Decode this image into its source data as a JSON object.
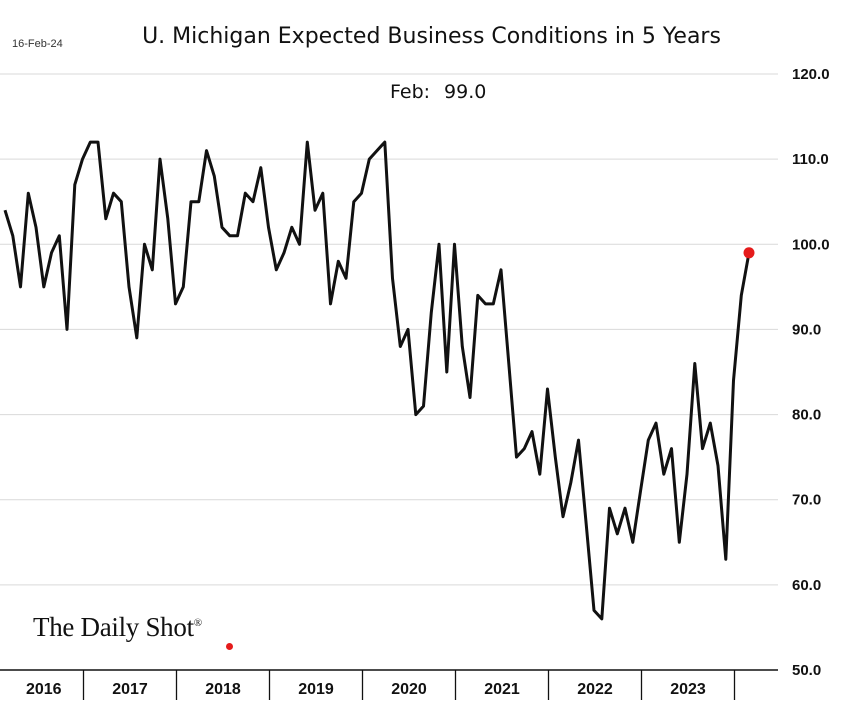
{
  "header": {
    "date": "16-Feb-24",
    "title": "U. Michigan Expected Business Conditions in 5 Years"
  },
  "annotation": {
    "label": "Feb:",
    "value": "99.0"
  },
  "logo": {
    "text": "The Daily Shot",
    "mark": "®"
  },
  "colors": {
    "line": "#111111",
    "last_point": "#e51b1b",
    "grid": "#d9d9d9"
  },
  "chart_data": {
    "type": "line",
    "title": "U. Michigan Expected Business Conditions in 5 Years",
    "xlabel": "",
    "ylabel": "",
    "ylim": [
      50,
      120
    ],
    "y_ticks": [
      "50.0",
      "60.0",
      "70.0",
      "80.0",
      "90.0",
      "100.0",
      "110.0",
      "120.0"
    ],
    "x_ticks": [
      "2016",
      "2017",
      "2018",
      "2019",
      "2020",
      "2021",
      "2022",
      "2023"
    ],
    "x_start": "2016-01",
    "grid": "horizontal",
    "y_axis_side": "right",
    "series": [
      {
        "values": [
          104,
          101,
          95,
          106,
          102,
          95,
          99,
          101,
          90,
          107,
          110,
          112,
          112,
          103,
          106,
          105,
          95,
          89,
          100,
          97,
          110,
          103,
          93,
          95,
          105,
          105,
          111,
          108,
          102,
          101,
          101,
          106,
          105,
          109,
          102,
          97,
          99,
          102,
          100,
          112,
          104,
          106,
          93,
          98,
          96,
          105,
          106,
          110,
          111,
          112,
          96,
          88,
          90,
          80,
          81,
          92,
          100,
          85,
          100,
          88,
          82,
          94,
          93,
          93,
          97,
          86,
          75,
          76,
          78,
          73,
          83,
          75,
          68,
          72,
          77,
          67,
          57,
          56,
          69,
          66,
          69,
          65,
          71,
          77,
          79,
          73,
          76,
          65,
          73,
          86,
          76,
          79,
          74,
          63,
          84,
          94,
          99
        ]
      }
    ]
  }
}
